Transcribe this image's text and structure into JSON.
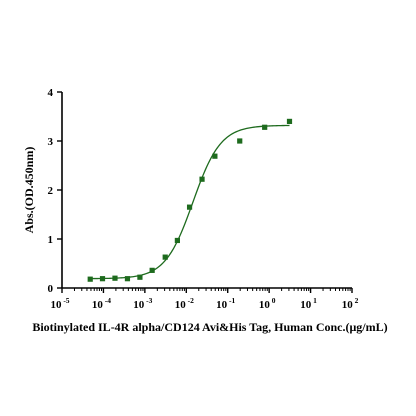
{
  "chart_data": {
    "type": "scatter",
    "title": "",
    "xlabel": "Biotinylated IL-4R alpha/CD124 Avi&His Tag, Human Conc.(μg/mL)",
    "ylabel": "Abs.(OD.450nm)",
    "x_scale": "log",
    "xlim": [
      1e-05,
      100
    ],
    "ylim": [
      0,
      4
    ],
    "x_ticks": [
      {
        "value": 1e-05,
        "base": "10",
        "exp": "-5"
      },
      {
        "value": 0.0001,
        "base": "10",
        "exp": "-4"
      },
      {
        "value": 0.001,
        "base": "10",
        "exp": "-3"
      },
      {
        "value": 0.01,
        "base": "10",
        "exp": "-2"
      },
      {
        "value": 0.1,
        "base": "10",
        "exp": "-1"
      },
      {
        "value": 1,
        "base": "10",
        "exp": "0"
      },
      {
        "value": 10,
        "base": "10",
        "exp": "1"
      },
      {
        "value": 100,
        "base": "10",
        "exp": "2"
      }
    ],
    "y_ticks": [
      0,
      1,
      2,
      3,
      4
    ],
    "grid": false,
    "marker_color": "#1e6b1e",
    "curve_color": "#1e6b1e",
    "series": [
      {
        "points": [
          {
            "x": 4.8e-05,
            "y": 0.18
          },
          {
            "x": 9.5e-05,
            "y": 0.19
          },
          {
            "x": 0.00019,
            "y": 0.2
          },
          {
            "x": 0.00038,
            "y": 0.19
          },
          {
            "x": 0.00076,
            "y": 0.22
          },
          {
            "x": 0.0015,
            "y": 0.36
          },
          {
            "x": 0.0031,
            "y": 0.63
          },
          {
            "x": 0.0061,
            "y": 0.97
          },
          {
            "x": 0.012,
            "y": 1.65
          },
          {
            "x": 0.024,
            "y": 2.22
          },
          {
            "x": 0.049,
            "y": 2.69
          },
          {
            "x": 0.195,
            "y": 3.0
          },
          {
            "x": 0.78,
            "y": 3.28
          },
          {
            "x": 3.1,
            "y": 3.4
          }
        ],
        "fit": {
          "model": "4PL",
          "bottom": 0.19,
          "top": 3.32,
          "ec50": 0.0145,
          "hill": 1.3
        }
      }
    ]
  }
}
